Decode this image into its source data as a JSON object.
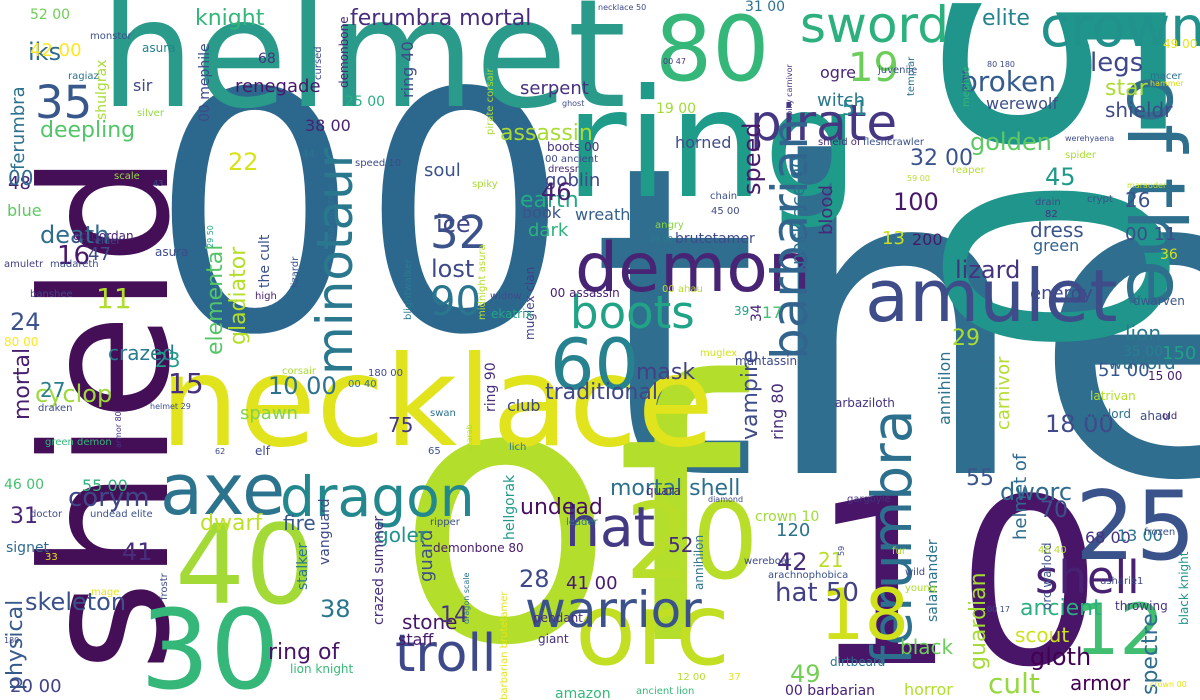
{
  "words": [
    {
      "text": "00",
      "color": "#2c688e"
    },
    {
      "text": "the",
      "color": "#2f6e8e"
    },
    {
      "text": "of",
      "color": "#b4de2c"
    },
    {
      "text": "shield",
      "color": "#440f57"
    },
    {
      "text": "50",
      "color": "#1f958b"
    },
    {
      "text": "10",
      "color": "#481568"
    },
    {
      "text": "helmet",
      "color": "#2a9b8a"
    },
    {
      "text": "ring",
      "color": "#1e9c89"
    },
    {
      "text": "necklace",
      "color": "#e1e31c"
    },
    {
      "text": "40",
      "color": "#a3da37"
    },
    {
      "text": "30",
      "color": "#35b779"
    },
    {
      "text": "20",
      "color": "#b8de29"
    },
    {
      "text": "orc",
      "color": "#c2df23"
    },
    {
      "text": "80",
      "color": "#35b779"
    },
    {
      "text": "amulet",
      "color": "#3e4c8a"
    },
    {
      "text": "demon",
      "color": "#482475"
    },
    {
      "text": "25",
      "color": "#3a538b"
    },
    {
      "text": "of the",
      "color": "#2e6f8e"
    },
    {
      "text": "axe",
      "color": "#2c738e"
    },
    {
      "text": "dragon",
      "color": "#23888e"
    },
    {
      "text": "crown",
      "color": "#21918c"
    },
    {
      "text": "warrior",
      "color": "#3b528b"
    },
    {
      "text": "ferumbra",
      "color": "#2d708e"
    },
    {
      "text": "sword",
      "color": "#2cb17e"
    },
    {
      "text": "pirate",
      "color": "#453781"
    },
    {
      "text": "troll",
      "color": "#3e4989"
    },
    {
      "text": "boots",
      "color": "#20a386"
    },
    {
      "text": "hat",
      "color": "#443a83"
    },
    {
      "text": "minotaur",
      "color": "#2a788e"
    },
    {
      "text": "60",
      "color": "#26828e"
    },
    {
      "text": "barbarian",
      "color": "#32658e"
    },
    {
      "text": "shell",
      "color": "#482173"
    },
    {
      "text": "18",
      "color": "#d0e11c"
    },
    {
      "text": "12",
      "color": "#42be71"
    },
    {
      "text": "90",
      "color": "#2a768e"
    },
    {
      "text": "32",
      "color": "#3b528b"
    },
    {
      "text": "35",
      "color": "#38588c"
    },
    {
      "text": "knight",
      "color": "#32b67a"
    },
    {
      "text": "ferumbra mortal",
      "color": "#472d7b"
    },
    {
      "text": "elite",
      "color": "#25838e"
    },
    {
      "text": "19",
      "color": "#6ccd5a"
    },
    {
      "text": "broken",
      "color": "#365c8d"
    },
    {
      "text": "legs",
      "color": "#3f4889"
    },
    {
      "text": "lost",
      "color": "#3e4a89"
    },
    {
      "text": "ice",
      "color": "#404688"
    },
    {
      "text": "elemental",
      "color": "#54c568"
    },
    {
      "text": "gladiator",
      "color": "#b5de2b"
    },
    {
      "text": "assassin",
      "color": "#a8db34"
    },
    {
      "text": "golden",
      "color": "#5ec962"
    },
    {
      "text": "deepling",
      "color": "#52c569"
    },
    {
      "text": "death",
      "color": "#2f6c8e"
    },
    {
      "text": "skeleton",
      "color": "#3b518b"
    },
    {
      "text": "cyclop",
      "color": "#9dd93b"
    },
    {
      "text": "mortal",
      "color": "#481f70"
    },
    {
      "text": "corym",
      "color": "#3f4788"
    },
    {
      "text": "mask",
      "color": "#424086"
    },
    {
      "text": "traditional",
      "color": "#3f4889"
    },
    {
      "text": "spawn",
      "color": "#7fd34e"
    },
    {
      "text": "dwarf",
      "color": "#bddf26"
    },
    {
      "text": "mortal shell",
      "color": "#2d708e"
    },
    {
      "text": "undead",
      "color": "#470e61"
    },
    {
      "text": "earth",
      "color": "#23a983"
    },
    {
      "text": "speed",
      "color": "#481a6c"
    },
    {
      "text": "vampire",
      "color": "#3e4c8a"
    },
    {
      "text": "dworc",
      "color": "#306a8e"
    },
    {
      "text": "lizard",
      "color": "#46337f"
    },
    {
      "text": "guardian",
      "color": "#a5db36"
    },
    {
      "text": "ancient",
      "color": "#2ab07f"
    },
    {
      "text": "gloth",
      "color": "#440154"
    },
    {
      "text": "cult",
      "color": "#95d840"
    },
    {
      "text": "armor",
      "color": "#440154"
    },
    {
      "text": "scout",
      "color": "#cde11d"
    },
    {
      "text": "ring of",
      "color": "#481467"
    },
    {
      "text": "stone",
      "color": "#481769"
    },
    {
      "text": "crazed",
      "color": "#287c8e"
    },
    {
      "text": "black",
      "color": "#6ccd5a"
    },
    {
      "text": "spectre",
      "color": "#2e6d8e"
    },
    {
      "text": "lion",
      "color": "#29798e"
    },
    {
      "text": "warlord",
      "color": "#2b758e"
    },
    {
      "text": "signet ring",
      "color": "#2e6f8e"
    },
    {
      "text": "carnivor",
      "color": "#b2dd2d"
    },
    {
      "text": "helmet of",
      "color": "#2f6b8e"
    },
    {
      "text": "annihilon",
      "color": "#2c728e"
    },
    {
      "text": "energy",
      "color": "#3f4889"
    },
    {
      "text": "dress",
      "color": "#3a548c"
    },
    {
      "text": "green",
      "color": "#33638d"
    },
    {
      "text": "blood",
      "color": "#482878"
    },
    {
      "text": "necklace 00",
      "color": "#2c718e"
    },
    {
      "text": "physical",
      "color": "#375a8c"
    },
    {
      "text": "signet",
      "color": "#2f6b8e"
    },
    {
      "text": "guard",
      "color": "#3c508b"
    },
    {
      "text": "staff",
      "color": "#481a6c"
    },
    {
      "text": "goler",
      "color": "#21918c"
    },
    {
      "text": "fire",
      "color": "#38588c"
    },
    {
      "text": "amazon",
      "color": "#35b779"
    },
    {
      "text": "renegade",
      "color": "#481769"
    },
    {
      "text": "iks",
      "color": "#2f6b8e"
    },
    {
      "text": "ferumbra",
      "color": "#2c718e"
    },
    {
      "text": "shieldr",
      "color": "#3e4a89"
    },
    {
      "text": "werewolf",
      "color": "#3d4e8a"
    },
    {
      "text": "star",
      "color": "#aadc32"
    },
    {
      "text": "witch",
      "color": "#2a778e"
    },
    {
      "text": "serpent",
      "color": "#46307e"
    },
    {
      "text": "ogre",
      "color": "#482475"
    },
    {
      "text": "blue",
      "color": "#5ec962"
    },
    {
      "text": "soul",
      "color": "#3b528b"
    },
    {
      "text": "goblin",
      "color": "#3f4889"
    },
    {
      "text": "book",
      "color": "#3b528b"
    },
    {
      "text": "wreath",
      "color": "#355f8d"
    },
    {
      "text": "dark",
      "color": "#2db27d"
    },
    {
      "text": "club",
      "color": "#3e4989"
    },
    {
      "text": "horror",
      "color": "#b2dd2d"
    },
    {
      "text": "brutetamer",
      "color": "#3e4c8a"
    },
    {
      "text": "hat 50",
      "color": "#424086"
    },
    {
      "text": "41 00",
      "color": "#481a6c"
    },
    {
      "text": "100",
      "color": "#481769"
    },
    {
      "text": "45",
      "color": "#1f9a8a"
    },
    {
      "text": "22",
      "color": "#d8e219"
    },
    {
      "text": "11",
      "color": "#b0dd2f"
    },
    {
      "text": "15",
      "color": "#46307e"
    },
    {
      "text": "16",
      "color": "#481769"
    },
    {
      "text": "47",
      "color": "#3e4a89"
    },
    {
      "text": "24",
      "color": "#3b528b"
    },
    {
      "text": "23",
      "color": "#1f9e89"
    },
    {
      "text": "27",
      "color": "#287d8e"
    },
    {
      "text": "31",
      "color": "#482576"
    },
    {
      "text": "41",
      "color": "#472d7b"
    },
    {
      "text": "38",
      "color": "#2a768e"
    },
    {
      "text": "28",
      "color": "#3e4989"
    },
    {
      "text": "14",
      "color": "#46337f"
    },
    {
      "text": "46",
      "color": "#482071"
    },
    {
      "text": "51",
      "color": "#24878e"
    },
    {
      "text": "29",
      "color": "#aadc32"
    },
    {
      "text": "55",
      "color": "#3a548c"
    },
    {
      "text": "70",
      "color": "#3b528b"
    },
    {
      "text": "26",
      "color": "#3b528b"
    },
    {
      "text": "21",
      "color": "#bade28"
    },
    {
      "text": "42",
      "color": "#472c7a"
    },
    {
      "text": "49",
      "color": "#74d055"
    },
    {
      "text": "75",
      "color": "#453882"
    },
    {
      "text": "52",
      "color": "#472d7b"
    },
    {
      "text": "48",
      "color": "#482071"
    },
    {
      "text": "13",
      "color": "#c8e020"
    },
    {
      "text": "120",
      "color": "#2c738e"
    },
    {
      "text": "150",
      "color": "#1fa088"
    },
    {
      "text": "200",
      "color": "#48196b"
    },
    {
      "text": "32 00",
      "color": "#3b528b"
    },
    {
      "text": "10 00",
      "color": "#2d718e"
    },
    {
      "text": "18 00",
      "color": "#3e4a89"
    },
    {
      "text": "35 00",
      "color": "#277f8e"
    },
    {
      "text": "51 00",
      "color": "#38598c"
    },
    {
      "text": "00 11",
      "color": "#3e4c8a"
    },
    {
      "text": "38 00",
      "color": "#482071"
    },
    {
      "text": "25 00",
      "color": "#29af7f"
    },
    {
      "text": "19 00",
      "color": "#a2da37"
    },
    {
      "text": "68 00",
      "color": "#46337f"
    },
    {
      "text": "13 00",
      "color": "#2b748e"
    },
    {
      "text": "20 00",
      "color": "#414487"
    },
    {
      "text": "55 00",
      "color": "#2fb47c"
    },
    {
      "text": "46 00",
      "color": "#44bf70"
    },
    {
      "text": "42 00",
      "color": "#fde725"
    },
    {
      "text": "52 00",
      "color": "#6ece58"
    },
    {
      "text": "80 00",
      "color": "#fde725"
    },
    {
      "text": "00",
      "color": "#2f6c8e"
    },
    {
      "text": "ring 40",
      "color": "#3e4a89"
    },
    {
      "text": "ring 80",
      "color": "#472d7b"
    },
    {
      "text": "ring 90",
      "color": "#472f7d"
    },
    {
      "text": "crown 10",
      "color": "#9fda3a"
    },
    {
      "text": "00 barbarian",
      "color": "#482173"
    },
    {
      "text": "lion knight",
      "color": "#38b977"
    },
    {
      "text": "the cult",
      "color": "#3b518b"
    },
    {
      "text": "crazed summer",
      "color": "#46307e"
    },
    {
      "text": "hellgorak",
      "color": "#1f9a8a"
    },
    {
      "text": "salamander",
      "color": "#2c738e"
    },
    {
      "text": "orc warlord",
      "color": "#3b518b"
    },
    {
      "text": "black knight",
      "color": "#1f948c"
    },
    {
      "text": "demonbone 80",
      "color": "#481b6d"
    },
    {
      "text": "vanguard",
      "color": "#3e4a89"
    },
    {
      "text": "stalker",
      "color": "#2a778e"
    },
    {
      "text": "pendant",
      "color": "#472f7d"
    },
    {
      "text": "giant",
      "color": "#472f7d"
    },
    {
      "text": "dirtbeard",
      "color": "#2c728e"
    },
    {
      "text": "quara",
      "color": "#482878"
    },
    {
      "text": "dwarven",
      "color": "#39568c"
    },
    {
      "text": "bonelord",
      "color": "#2c728e"
    },
    {
      "text": "ahau",
      "color": "#3d4d8a"
    },
    {
      "text": "old",
      "color": "#481a6c"
    },
    {
      "text": "15 00",
      "color": "#481a6c"
    },
    {
      "text": "latrivan",
      "color": "#b5de2b"
    },
    {
      "text": "arbaziloth",
      "color": "#46337f"
    },
    {
      "text": "mantassin",
      "color": "#3e4a89"
    },
    {
      "text": "muglex",
      "color": "#d2e21b"
    },
    {
      "text": "muglex clan",
      "color": "#424086"
    },
    {
      "text": "00 assassin",
      "color": "#481f70"
    },
    {
      "text": "00 ahau",
      "color": "#b8de29"
    },
    {
      "text": "ekatrix",
      "color": "#22a785"
    },
    {
      "text": "widow",
      "color": "#3e4c8a"
    },
    {
      "text": "34",
      "color": "#482878"
    },
    {
      "text": "39",
      "color": "#1fa088"
    },
    {
      "text": "17",
      "color": "#46c06f"
    },
    {
      "text": "blightwalker",
      "color": "#297b8e"
    },
    {
      "text": "midnight asura",
      "color": "#b5de2b"
    },
    {
      "text": "lizardr",
      "color": "#3b518b"
    },
    {
      "text": "thanatursus",
      "color": "#2c728e"
    },
    {
      "text": "golgordan",
      "color": "#482173"
    },
    {
      "text": "elder",
      "color": "#3e4a89"
    },
    {
      "text": "amuletr",
      "color": "#424086"
    },
    {
      "text": "madareth",
      "color": "#3e4c8a"
    },
    {
      "text": "banshee",
      "color": "#404688"
    },
    {
      "text": "high",
      "color": "#481d6f"
    },
    {
      "text": "29 50",
      "color": "#22a785"
    },
    {
      "text": "29 00",
      "color": "#297b8e"
    },
    {
      "text": "angry",
      "color": "#8bd646"
    },
    {
      "text": "horned",
      "color": "#3d4d8a"
    },
    {
      "text": "boots 00",
      "color": "#46307e"
    },
    {
      "text": "00 ancient",
      "color": "#3e4989"
    },
    {
      "text": "dressr",
      "color": "#482878"
    },
    {
      "text": "spiky",
      "color": "#a8db34"
    },
    {
      "text": "speed 10",
      "color": "#3e4a89"
    },
    {
      "text": "44",
      "color": "#2c728e"
    },
    {
      "text": "cursed",
      "color": "#3e4a89"
    },
    {
      "text": "68",
      "color": "#46337f"
    },
    {
      "text": "monstor",
      "color": "#3b518b"
    },
    {
      "text": "asura",
      "color": "#25838e"
    },
    {
      "text": "sir",
      "color": "#3e4a89"
    },
    {
      "text": "shulgrax",
      "color": "#a8db34"
    },
    {
      "text": "ragiaz",
      "color": "#2c728e"
    },
    {
      "text": "silver",
      "color": "#95d840"
    },
    {
      "text": "00 mephile",
      "color": "#3e4a89"
    },
    {
      "text": "demonbone",
      "color": "#482173"
    },
    {
      "text": "31 00",
      "color": "#2c728e"
    },
    {
      "text": "00 47",
      "color": "#46337f"
    },
    {
      "text": "pirate corsair",
      "color": "#aadc32"
    },
    {
      "text": "ghost",
      "color": "#3e4c8a"
    },
    {
      "text": "spiky carnivor",
      "color": "#46337f"
    },
    {
      "text": "juvenile",
      "color": "#3b518b"
    },
    {
      "text": "80 180",
      "color": "#3e4a89"
    },
    {
      "text": "templar",
      "color": "#2c738e"
    },
    {
      "text": "mephile",
      "color": "#35b779"
    },
    {
      "text": "macer",
      "color": "#2c718e"
    },
    {
      "text": "hammer",
      "color": "#d8e219"
    },
    {
      "text": "49 00",
      "color": "#e5e419"
    },
    {
      "text": "necklace 50",
      "color": "#3e4989"
    },
    {
      "text": "shield of",
      "color": "#482878"
    },
    {
      "text": "fleshcrawler",
      "color": "#3b528b"
    },
    {
      "text": "werehyaena",
      "color": "#3e4c8a"
    },
    {
      "text": "spider",
      "color": "#aadc32"
    },
    {
      "text": "reaper",
      "color": "#b5de2b"
    },
    {
      "text": "59 00",
      "color": "#b5de2b"
    },
    {
      "text": "crypt",
      "color": "#3b518b"
    },
    {
      "text": "drain",
      "color": "#3e4a89"
    },
    {
      "text": "82",
      "color": "#46337f"
    },
    {
      "text": "36",
      "color": "#d2e21b"
    },
    {
      "text": "marauder",
      "color": "#bddf26"
    },
    {
      "text": "chain",
      "color": "#3b528b"
    },
    {
      "text": "45 00",
      "color": "#3e4a89"
    },
    {
      "text": "scale",
      "color": "#95d840"
    },
    {
      "text": "43",
      "color": "#3e4a89"
    },
    {
      "text": "asura",
      "color": "#3d4d8a"
    },
    {
      "text": "draken",
      "color": "#3e4a89"
    },
    {
      "text": "green demon",
      "color": "#34b679"
    },
    {
      "text": "armor 80",
      "color": "#46337f"
    },
    {
      "text": "helmet 29",
      "color": "#3b518b"
    },
    {
      "text": "180 00",
      "color": "#3e4a89"
    },
    {
      "text": "corsair",
      "color": "#a8db34"
    },
    {
      "text": "00 40",
      "color": "#2c728e"
    },
    {
      "text": "62",
      "color": "#3e4a89"
    },
    {
      "text": "elf",
      "color": "#3e4a89"
    },
    {
      "text": "swan",
      "color": "#2c738e"
    },
    {
      "text": "65",
      "color": "#3b518b"
    },
    {
      "text": "scarab",
      "color": "#aadc32"
    },
    {
      "text": "lich",
      "color": "#2c728e"
    },
    {
      "text": "diamond",
      "color": "#3e4a89"
    },
    {
      "text": "gargoyle",
      "color": "#46337f"
    },
    {
      "text": "frozen",
      "color": "#3b518b"
    },
    {
      "text": "fur",
      "color": "#b5de2b"
    },
    {
      "text": "wild",
      "color": "#3e4a89"
    },
    {
      "text": "young",
      "color": "#aadc32"
    },
    {
      "text": "46 40",
      "color": "#b5de2b"
    },
    {
      "text": "usharie1",
      "color": "#3e4a89"
    },
    {
      "text": "00 17",
      "color": "#3e4a89"
    },
    {
      "text": "throwing",
      "color": "#46337f"
    },
    {
      "text": "crown 00",
      "color": "#e5e419"
    },
    {
      "text": "wereboar",
      "color": "#3e4a89"
    },
    {
      "text": "arachnophobica",
      "color": "#3b518b"
    },
    {
      "text": "59",
      "color": "#3e4a89"
    },
    {
      "text": "leader",
      "color": "#2c728e"
    },
    {
      "text": "ripper",
      "color": "#3b518b"
    },
    {
      "text": "annihilon",
      "color": "#2c738e"
    },
    {
      "text": "dragon scale",
      "color": "#2c728e"
    },
    {
      "text": "barbarian brutetamer",
      "color": "#e5e419"
    },
    {
      "text": "frostr",
      "color": "#3e4a89"
    },
    {
      "text": "mage",
      "color": "#e5e419"
    },
    {
      "text": "33",
      "color": "#e5e419"
    },
    {
      "text": "doctor",
      "color": "#3e4a89"
    },
    {
      "text": "undead elite",
      "color": "#3b518b"
    },
    {
      "text": "180",
      "color": "#3e4a89"
    },
    {
      "text": "ancient lion",
      "color": "#35b779"
    },
    {
      "text": "12 00",
      "color": "#b5de2b"
    },
    {
      "text": "37",
      "color": "#e5e419"
    }
  ]
}
